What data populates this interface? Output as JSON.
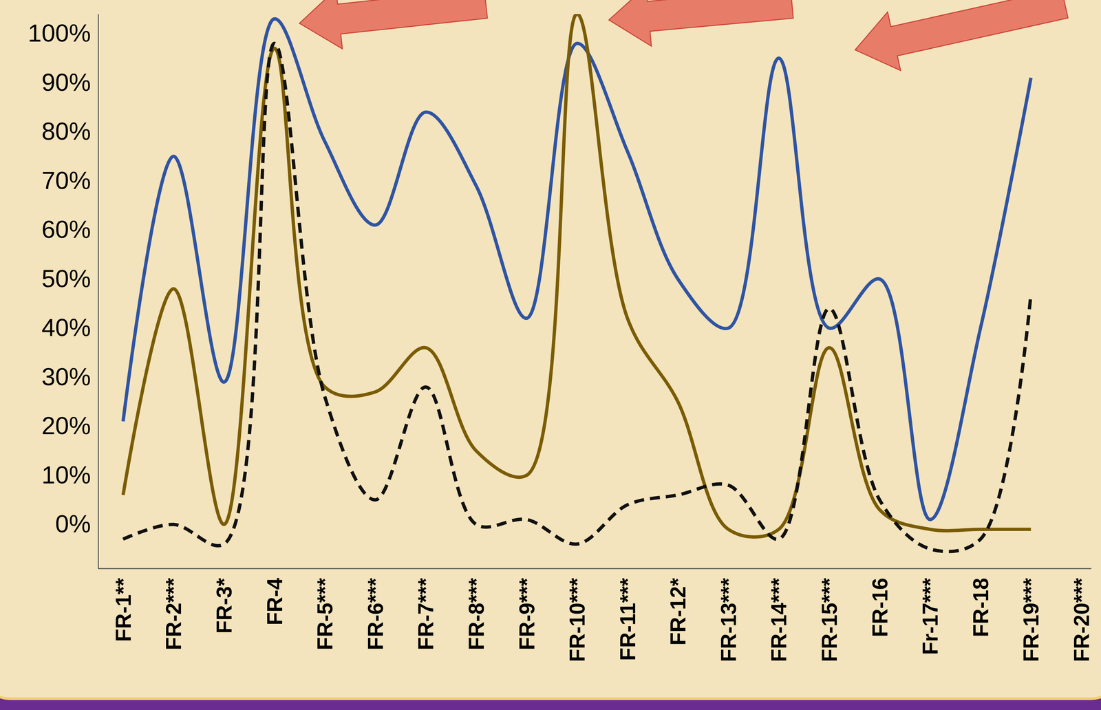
{
  "chart_data": {
    "type": "line",
    "categories": [
      "FR-1**",
      "FR-2***",
      "FR-3*",
      "FR-4",
      "FR-5***",
      "FR-6***",
      "FR-7***",
      "FR-8***",
      "FR-9***",
      "FR-10***",
      "FR-11***",
      "FR-12*",
      "FR-13***",
      "FR-14***",
      "FR-15***",
      "FR-16",
      "Fr-17***",
      "FR-18",
      "FR-19***",
      "FR-20***"
    ],
    "series": [
      {
        "color": "#2f54a3",
        "line_style": "solid",
        "values": [
          21,
          75,
          29,
          103,
          78,
          61,
          84,
          69,
          42,
          98,
          76,
          50,
          40,
          95,
          40,
          50,
          1,
          40,
          91,
          null
        ]
      },
      {
        "color": "#7a5c05",
        "line_style": "solid",
        "values": [
          6,
          48,
          0,
          97,
          28,
          27,
          36,
          15,
          10,
          104,
          42,
          25,
          -1,
          -1,
          36,
          3,
          -1,
          -1,
          -1,
          null
        ]
      },
      {
        "color": "#111111",
        "line_style": "dashed",
        "values": [
          -3,
          0,
          -4,
          98,
          26,
          5,
          28,
          0,
          1,
          -4,
          4,
          6,
          8,
          -3,
          44,
          5,
          -5,
          -3,
          47,
          null
        ]
      }
    ],
    "ylim": [
      -9,
      104
    ],
    "yticks": [
      {
        "value": 0,
        "label": "0%"
      },
      {
        "value": 10,
        "label": "10%"
      },
      {
        "value": 20,
        "label": "20%"
      },
      {
        "value": 30,
        "label": "30%"
      },
      {
        "value": 40,
        "label": "40%"
      },
      {
        "value": 50,
        "label": "50%"
      },
      {
        "value": 60,
        "label": "60%"
      },
      {
        "value": 70,
        "label": "70%"
      },
      {
        "value": 80,
        "label": "80%"
      },
      {
        "value": 90,
        "label": "90%"
      },
      {
        "value": 100,
        "label": "100%"
      }
    ],
    "grid": false
  }
}
